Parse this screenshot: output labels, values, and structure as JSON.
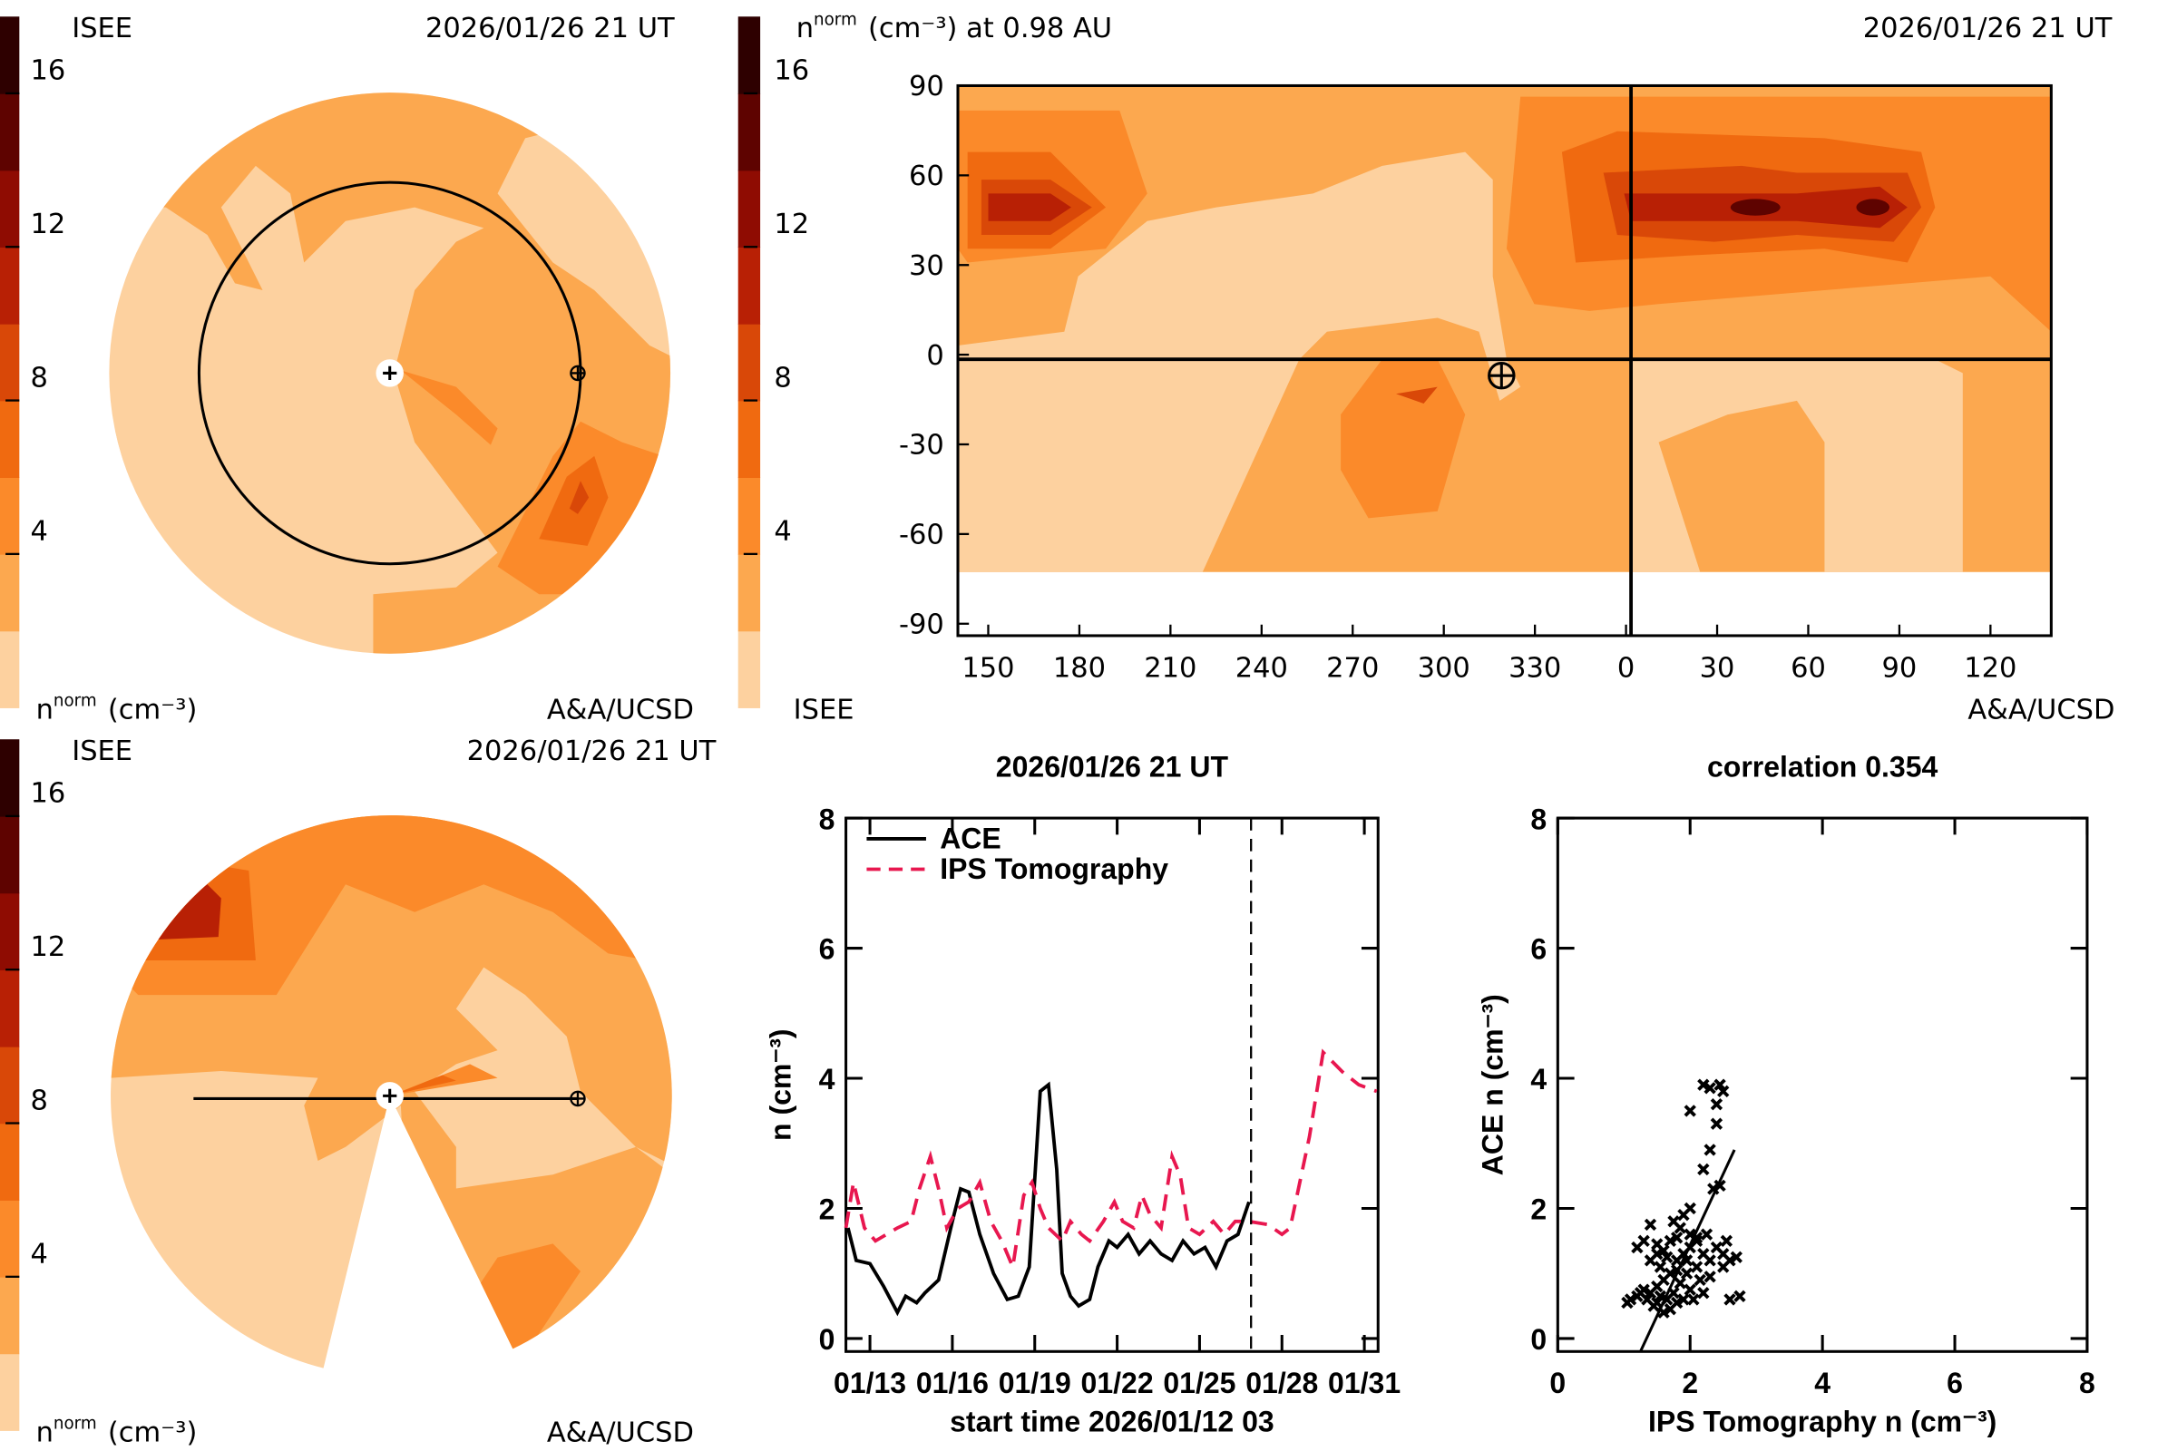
{
  "chart_data": [
    {
      "type": "polar-contour",
      "corner_label": "ISEE",
      "time": "2026/01/26 21 UT",
      "label": {
        "n": "n",
        "sup": "norm",
        "unit": "(cm⁻³)"
      },
      "credit": "A&A/UCSD",
      "colorbar": {
        "clim": [
          0,
          18
        ],
        "ticks": [
          4,
          8,
          12,
          16
        ],
        "colors": [
          "#fdd19f",
          "#fca84f",
          "#fb8a2a",
          "#f06a10",
          "#d94808",
          "#b82005",
          "#8f0c02",
          "#5e0300",
          "#2e0000"
        ]
      }
    },
    {
      "type": "polar-contour",
      "corner_label": "ISEE",
      "time": "2026/01/26 21 UT",
      "label": {
        "n": "n",
        "sup": "norm",
        "unit": "(cm⁻³)"
      },
      "credit": "A&A/UCSD",
      "colorbar": {
        "clim": [
          0,
          18
        ],
        "ticks": [
          4,
          8,
          12,
          16
        ],
        "colors": [
          "#fdd19f",
          "#fca84f",
          "#fb8a2a",
          "#f06a10",
          "#d94808",
          "#b82005",
          "#8f0c02",
          "#5e0300",
          "#2e0000"
        ]
      }
    },
    {
      "type": "contour",
      "title": {
        "n": "n",
        "sup": "norm",
        "rest": "(cm⁻³) at 0.98 AU"
      },
      "time": "2026/01/26 21 UT",
      "corner_label": "ISEE",
      "credit": "A&A/UCSD",
      "colorbar": {
        "clim": [
          0,
          18
        ],
        "ticks": [
          4,
          8,
          12,
          16
        ],
        "colors": [
          "#fdd19f",
          "#fca84f",
          "#fb8a2a",
          "#f06a10",
          "#d94808",
          "#b82005",
          "#8f0c02",
          "#5e0300",
          "#2e0000"
        ]
      },
      "xlim": [
        140,
        500
      ],
      "xticks": [
        150,
        180,
        210,
        240,
        270,
        300,
        330,
        {
          "value": 360,
          "label": "0"
        },
        {
          "value": 390,
          "label": "30"
        },
        {
          "value": 420,
          "label": "60"
        },
        {
          "value": 450,
          "label": "90"
        },
        {
          "value": 480,
          "label": "120"
        }
      ],
      "ylim": [
        -94,
        90
      ],
      "yticks": [
        90,
        60,
        30,
        0,
        -30,
        -60,
        -90
      ],
      "earth": {
        "x": 319,
        "y": -7
      }
    },
    {
      "type": "line",
      "title": "2026/01/26 21 UT",
      "xlabel": "start time 2026/01/12 03",
      "ylabel": "n (cm⁻³)",
      "xlim": [
        12.125,
        31.5
      ],
      "xticks": [
        {
          "value": 13,
          "label": "01/13"
        },
        {
          "value": 16,
          "label": "01/16"
        },
        {
          "value": 19,
          "label": "01/19"
        },
        {
          "value": 22,
          "label": "01/22"
        },
        {
          "value": 25,
          "label": "01/25"
        },
        {
          "value": 28,
          "label": "01/28"
        },
        {
          "value": 31,
          "label": "01/31"
        }
      ],
      "ylim": [
        -0.2,
        8
      ],
      "yticks": [
        0,
        2,
        4,
        6,
        8
      ],
      "legend": "upper left",
      "vline": 26.875,
      "series": [
        {
          "name": "ACE",
          "color": "#000000",
          "dash": "solid",
          "x": [
            12.2,
            12.5,
            13,
            13.5,
            14,
            14.3,
            14.7,
            15,
            15.5,
            16,
            16.3,
            16.6,
            17,
            17.5,
            18,
            18.4,
            18.8,
            19.2,
            19.5,
            19.8,
            20,
            20.3,
            20.6,
            21,
            21.3,
            21.7,
            22,
            22.4,
            22.8,
            23.2,
            23.6,
            24,
            24.4,
            24.8,
            25.2,
            25.6,
            26,
            26.4,
            26.8
          ],
          "values": [
            1.7,
            1.2,
            1.15,
            0.8,
            0.4,
            0.65,
            0.55,
            0.7,
            0.9,
            1.8,
            2.3,
            2.25,
            1.6,
            1.0,
            0.6,
            0.65,
            1.1,
            3.8,
            3.9,
            2.6,
            1.0,
            0.65,
            0.5,
            0.6,
            1.1,
            1.5,
            1.4,
            1.6,
            1.3,
            1.5,
            1.3,
            1.2,
            1.5,
            1.3,
            1.4,
            1.1,
            1.5,
            1.6,
            2.1
          ]
        },
        {
          "name": "IPS Tomography",
          "color": "#e8174f",
          "dash": "dashed",
          "x": [
            12.125,
            12.4,
            12.8,
            13.2,
            13.6,
            14,
            14.5,
            14.8,
            15.2,
            15.5,
            15.8,
            16.2,
            16.6,
            17,
            17.4,
            17.8,
            18.2,
            18.6,
            18.9,
            19.2,
            19.5,
            20,
            20.3,
            20.7,
            21,
            21.5,
            21.9,
            22.2,
            22.6,
            22.9,
            23.2,
            23.6,
            24,
            24.3,
            24.6,
            25,
            25.5,
            25.9,
            26.3,
            26.8,
            27.5,
            28,
            28.3,
            29,
            29.5,
            30.2,
            30.8,
            31.45
          ],
          "values": [
            1.7,
            2.4,
            1.7,
            1.5,
            1.6,
            1.7,
            1.8,
            2.3,
            2.8,
            2.3,
            1.7,
            2.0,
            2.1,
            2.4,
            1.8,
            1.5,
            1.1,
            2.2,
            2.4,
            2.0,
            1.7,
            1.5,
            1.8,
            1.6,
            1.5,
            1.8,
            2.1,
            1.8,
            1.7,
            2.2,
            1.9,
            1.7,
            2.8,
            2.5,
            1.7,
            1.6,
            1.8,
            1.6,
            1.8,
            1.8,
            1.75,
            1.6,
            1.7,
            3.1,
            4.4,
            4.1,
            3.9,
            3.8
          ]
        }
      ]
    },
    {
      "type": "scatter",
      "title": "correlation 0.354",
      "xlabel": "IPS Tomography n (cm⁻³)",
      "ylabel": "ACE n (cm⁻³)",
      "xlim": [
        0,
        8
      ],
      "xticks": [
        0,
        2,
        4,
        6,
        8
      ],
      "ylim": [
        -0.2,
        8
      ],
      "yticks": [
        0,
        2,
        4,
        6,
        8
      ],
      "color": "#000000",
      "x": [
        1.05,
        1.1,
        1.2,
        1.25,
        1.3,
        1.35,
        1.4,
        1.45,
        1.5,
        1.5,
        1.55,
        1.6,
        1.6,
        1.65,
        1.7,
        1.7,
        1.75,
        1.8,
        1.8,
        1.85,
        1.9,
        1.9,
        1.95,
        2.0,
        2.0,
        2.05,
        2.1,
        2.1,
        2.15,
        2.2,
        2.2,
        2.25,
        2.3,
        2.3,
        2.35,
        2.4,
        2.45,
        2.5,
        2.5,
        2.55,
        2.6,
        2.6,
        2.7,
        2.75,
        1.4,
        1.5,
        1.6,
        1.7,
        1.75,
        1.8,
        1.85,
        1.9,
        2.0,
        2.0,
        2.1,
        1.3,
        1.2,
        1.4,
        1.5,
        1.65,
        2.2,
        2.3,
        2.4,
        2.5,
        2.45,
        2.4,
        2.3,
        2.2,
        2.0,
        1.95,
        1.55,
        1.8
      ],
      "values": [
        0.55,
        0.6,
        0.65,
        0.7,
        0.75,
        0.6,
        0.7,
        0.5,
        0.55,
        0.8,
        0.65,
        0.4,
        0.9,
        0.6,
        1.0,
        0.45,
        0.7,
        0.55,
        1.2,
        0.85,
        0.6,
        1.3,
        1.0,
        0.75,
        1.4,
        0.6,
        1.1,
        1.5,
        0.9,
        1.3,
        0.7,
        1.6,
        1.2,
        0.95,
        2.3,
        1.4,
        2.35,
        1.1,
        1.3,
        1.5,
        1.2,
        0.6,
        1.25,
        0.65,
        1.2,
        1.45,
        1.35,
        1.5,
        1.8,
        1.55,
        1.7,
        1.9,
        1.6,
        2.0,
        1.55,
        1.5,
        1.4,
        1.75,
        1.3,
        1.25,
        3.9,
        3.85,
        3.6,
        3.8,
        3.9,
        3.3,
        2.9,
        2.6,
        3.5,
        1.2,
        1.1,
        1.05
      ],
      "fit": {
        "x": [
          1.25,
          2.67
        ],
        "values": [
          -0.2,
          2.9
        ]
      }
    }
  ]
}
